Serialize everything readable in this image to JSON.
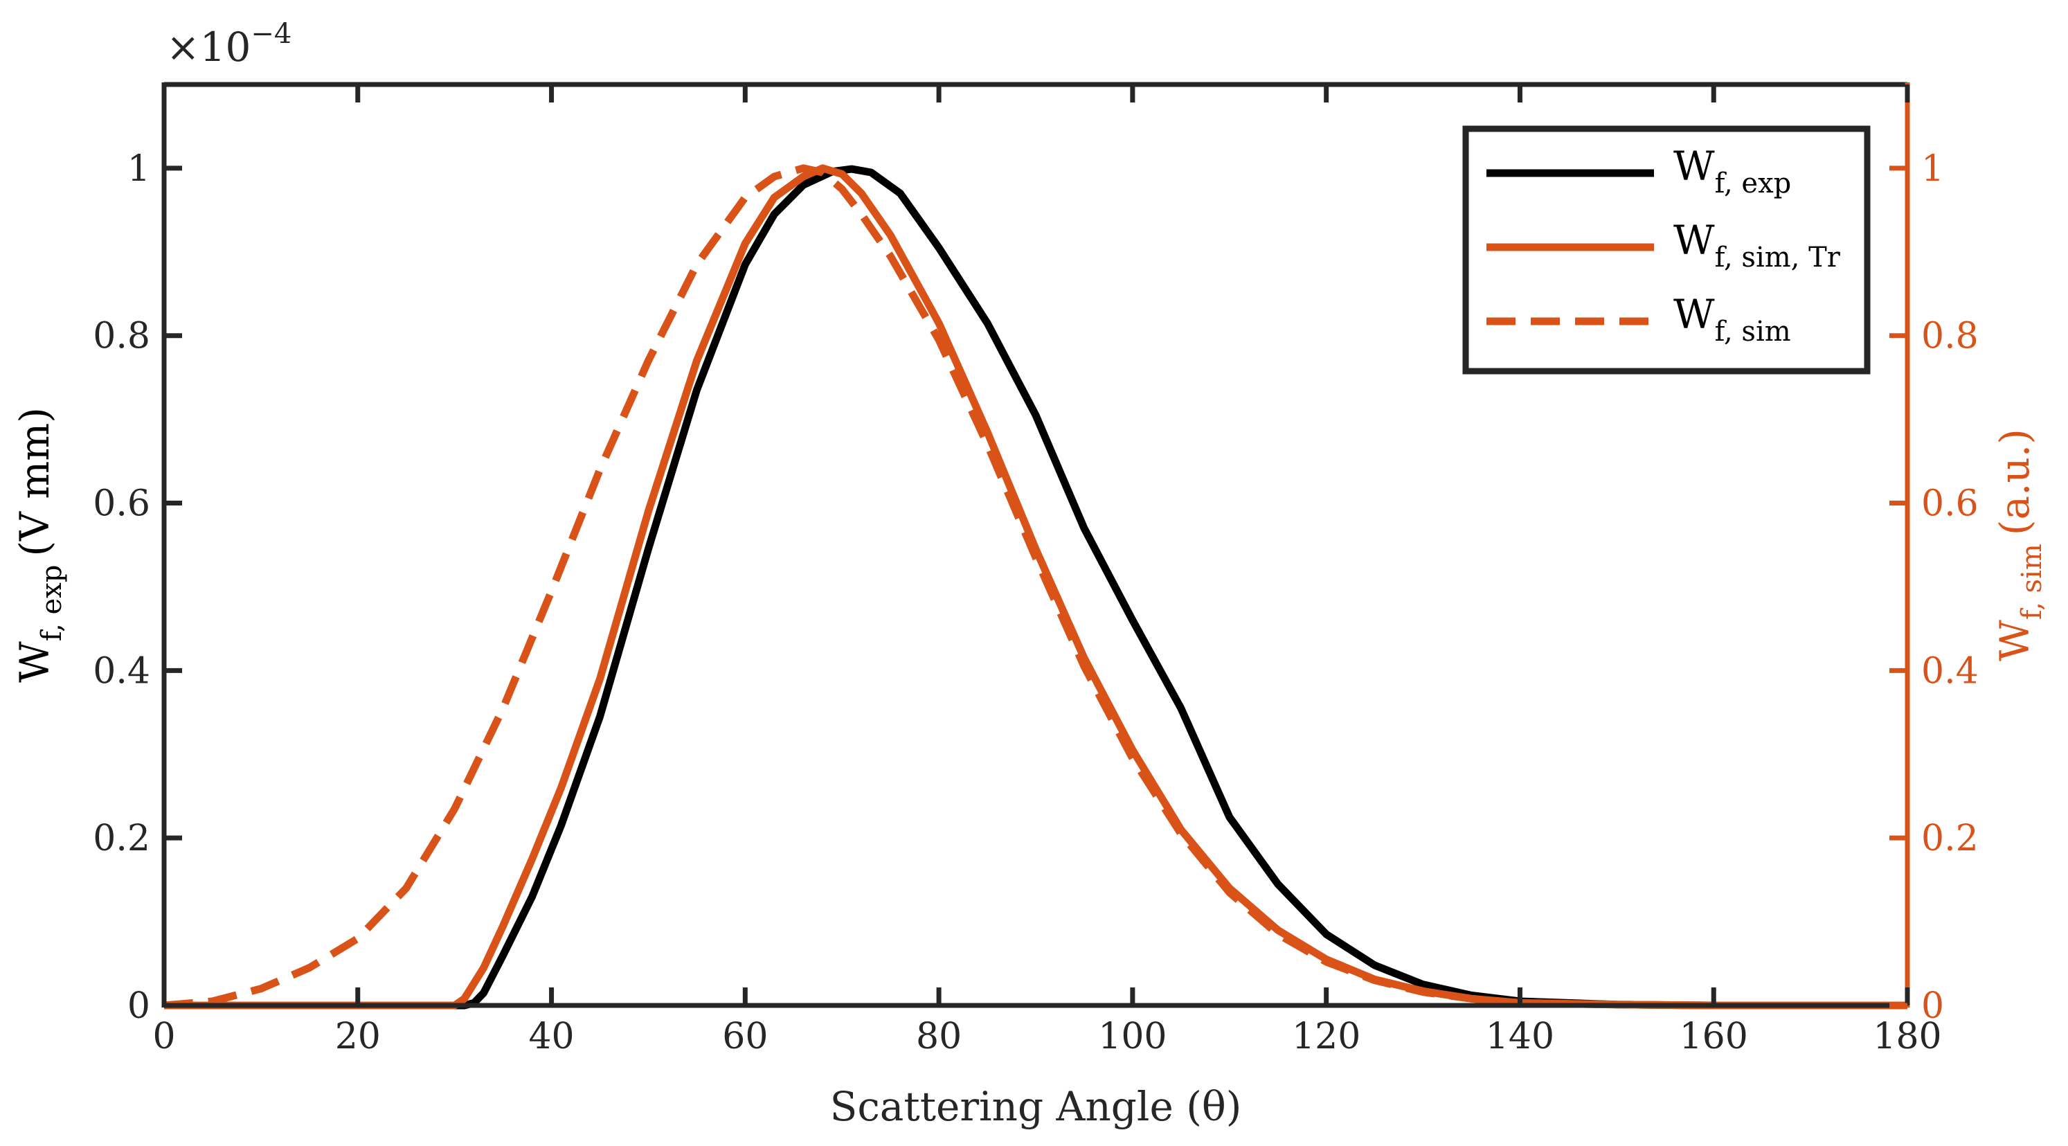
{
  "colors": {
    "exp": "#000000",
    "sim": "#D95319",
    "frame": "#262626",
    "background": "#ffffff"
  },
  "chart_data": {
    "type": "line",
    "xlabel": "Scattering Angle (θ)",
    "xlim": [
      0,
      180
    ],
    "xticks": [
      0,
      20,
      40,
      60,
      80,
      100,
      120,
      140,
      160,
      180
    ],
    "xtick_labels": [
      "0",
      "20",
      "40",
      "60",
      "80",
      "100",
      "120",
      "140",
      "160",
      "180"
    ],
    "y_left": {
      "label_main": "W",
      "label_sub": "f, exp",
      "label_units": "(V mm)",
      "lim": [
        0,
        1.1
      ],
      "ticks": [
        0,
        0.2,
        0.4,
        0.6,
        0.8,
        1
      ],
      "tick_labels": [
        "0",
        "0.2",
        "0.4",
        "0.6",
        "0.8",
        "1"
      ],
      "exponent_base": "×10",
      "exponent_power": "−4"
    },
    "y_right": {
      "label_main": "W",
      "label_sub": "f, sim",
      "label_units": "(a.u.)",
      "lim": [
        0,
        1.1
      ],
      "ticks": [
        0,
        0.2,
        0.4,
        0.6,
        0.8,
        1
      ],
      "tick_labels": [
        "0",
        "0.2",
        "0.4",
        "0.6",
        "0.8",
        "1"
      ]
    },
    "legend": {
      "position": "top-right",
      "entries": [
        {
          "main": "W",
          "sub": "f, exp"
        },
        {
          "main": "W",
          "sub": "f, sim, Tr"
        },
        {
          "main": "W",
          "sub": "f, sim"
        }
      ]
    },
    "series": [
      {
        "name": "W_f,exp",
        "axis": "left",
        "style": "solid",
        "color": "#000000",
        "x": [
          0,
          31,
          32,
          33,
          35,
          38,
          41,
          45,
          50,
          55,
          60,
          63,
          66,
          69,
          71,
          73,
          76,
          80,
          85,
          90,
          95,
          100,
          105,
          110,
          115,
          120,
          125,
          130,
          135,
          140,
          150,
          160,
          170,
          180
        ],
        "y": [
          0,
          0,
          0.003,
          0.015,
          0.06,
          0.13,
          0.215,
          0.345,
          0.545,
          0.735,
          0.885,
          0.945,
          0.98,
          0.996,
          0.999,
          0.995,
          0.97,
          0.905,
          0.815,
          0.705,
          0.57,
          0.46,
          0.355,
          0.225,
          0.145,
          0.085,
          0.048,
          0.025,
          0.012,
          0.005,
          0.001,
          0,
          0,
          0
        ]
      },
      {
        "name": "W_f,sim,Tr",
        "axis": "right",
        "style": "solid",
        "color": "#D95319",
        "x": [
          0,
          30,
          31,
          33,
          35,
          38,
          41,
          45,
          50,
          55,
          60,
          63,
          66,
          68,
          70,
          72,
          75,
          80,
          85,
          90,
          95,
          100,
          105,
          110,
          115,
          120,
          125,
          130,
          135,
          140,
          150,
          160,
          170,
          180
        ],
        "y": [
          0,
          0,
          0.008,
          0.045,
          0.095,
          0.175,
          0.26,
          0.39,
          0.59,
          0.77,
          0.91,
          0.965,
          0.99,
          1.0,
          0.993,
          0.97,
          0.92,
          0.815,
          0.685,
          0.545,
          0.415,
          0.305,
          0.21,
          0.14,
          0.09,
          0.055,
          0.031,
          0.017,
          0.008,
          0.003,
          0.001,
          0,
          0,
          0
        ]
      },
      {
        "name": "W_f,sim",
        "axis": "right",
        "style": "dashed",
        "color": "#D95319",
        "x": [
          0,
          5,
          10,
          15,
          20,
          25,
          30,
          35,
          40,
          45,
          50,
          55,
          60,
          63,
          66,
          68,
          70,
          72,
          75,
          80,
          85,
          90,
          95,
          100,
          105,
          110,
          115,
          120,
          125,
          130,
          135,
          140,
          150,
          160,
          170,
          180
        ],
        "y": [
          0,
          0.005,
          0.02,
          0.045,
          0.08,
          0.14,
          0.235,
          0.355,
          0.495,
          0.64,
          0.77,
          0.885,
          0.965,
          0.99,
          1.0,
          0.995,
          0.975,
          0.945,
          0.895,
          0.795,
          0.67,
          0.535,
          0.405,
          0.295,
          0.205,
          0.135,
          0.085,
          0.052,
          0.03,
          0.016,
          0.008,
          0.003,
          0.001,
          0,
          0,
          0
        ]
      }
    ]
  }
}
